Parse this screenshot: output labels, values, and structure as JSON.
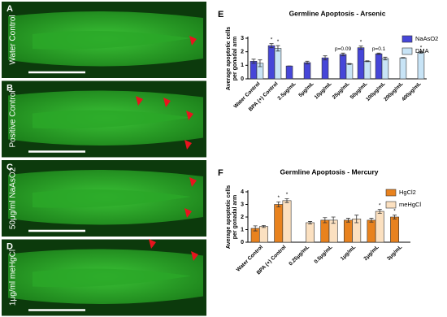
{
  "panels": [
    {
      "letter": "A",
      "label": "Water Control"
    },
    {
      "letter": "B",
      "label": "Positive Control"
    },
    {
      "letter": "C",
      "label": "50μg/ml NaAsO2"
    },
    {
      "letter": "D",
      "label": "1μg/ml meHgCl"
    }
  ],
  "chart_data": [
    {
      "type": "bar",
      "letter": "E",
      "title": "Germline  Apoptosis - Arsenic",
      "ylabel": [
        "Average apoptotic cells",
        "per gonadal arm"
      ],
      "categories": [
        "Water Control",
        "BPA (+) Control",
        "2.5μg/mL",
        "5μg/mL",
        "10μg/mL",
        "25μg/mL",
        "50μg/mL",
        "100μg/mL",
        "200μg/mL",
        "400μg/mL"
      ],
      "series": [
        {
          "name": "NaAsO2",
          "color": "#4646d8",
          "values": [
            1.3,
            2.45,
            0.95,
            1.2,
            1.55,
            1.8,
            2.3,
            1.85,
            null,
            null
          ],
          "errors": [
            0.15,
            0.15,
            0,
            0.1,
            0.15,
            0.1,
            0.12,
            0.05,
            null,
            null
          ]
        },
        {
          "name": "DMA",
          "color": "#c8e4f6",
          "values": [
            1.15,
            2.25,
            null,
            null,
            null,
            1.1,
            1.3,
            1.5,
            1.55,
            1.95
          ],
          "errors": [
            0.25,
            0.2,
            null,
            null,
            null,
            0.03,
            0.03,
            0.1,
            0.02,
            0.05
          ]
        }
      ],
      "annotations": [
        {
          "category": "BPA (+) Control",
          "series": "NaAsO2",
          "text": "*"
        },
        {
          "category": "BPA (+) Control",
          "series": "DMA",
          "text": "*"
        },
        {
          "category": "25μg/mL",
          "series": "NaAsO2",
          "text": "p=0.09"
        },
        {
          "category": "50μg/mL",
          "series": "NaAsO2",
          "text": "*"
        },
        {
          "category": "100μg/mL",
          "series": "NaAsO2",
          "text": "p=0.1"
        },
        {
          "category": "400μg/mL",
          "series": "DMA",
          "text": "*"
        }
      ],
      "ylim": [
        0,
        3
      ],
      "yticks": [
        0,
        1,
        2,
        3
      ],
      "legend": "top-right"
    },
    {
      "type": "bar",
      "letter": "F",
      "title": "Germline  Apoptosis - Mercury",
      "ylabel": [
        "Average apoptotic cells",
        "per gonadal arm"
      ],
      "categories": [
        "Water Control",
        "BPA (+) Control",
        "0.25μg/mL",
        "0.5μg/mL",
        "1μg/mL",
        "2μg/mL",
        "3μg/mL"
      ],
      "series": [
        {
          "name": "HgCl2",
          "color": "#e8821e",
          "values": [
            1.1,
            3.0,
            null,
            1.75,
            1.75,
            1.75,
            2.0
          ],
          "errors": [
            0.2,
            0.2,
            null,
            0.2,
            0.15,
            0.15,
            0.15
          ]
        },
        {
          "name": "meHgCl",
          "color": "#fbe0c0",
          "values": [
            1.25,
            3.3,
            1.55,
            1.75,
            1.85,
            2.45,
            null
          ],
          "errors": [
            0.08,
            0.15,
            0.1,
            0.25,
            0.3,
            0.15,
            null
          ]
        }
      ],
      "annotations": [
        {
          "category": "BPA (+) Control",
          "series": "HgCl2",
          "text": "*"
        },
        {
          "category": "BPA (+) Control",
          "series": "meHgCl",
          "text": "*"
        },
        {
          "category": "2μg/mL",
          "series": "meHgCl",
          "text": "*"
        },
        {
          "category": "3μg/mL",
          "series": "HgCl2",
          "text": "*"
        }
      ],
      "ylim": [
        0,
        4
      ],
      "yticks": [
        0,
        1,
        2,
        3,
        4
      ],
      "legend": "top-right"
    }
  ]
}
